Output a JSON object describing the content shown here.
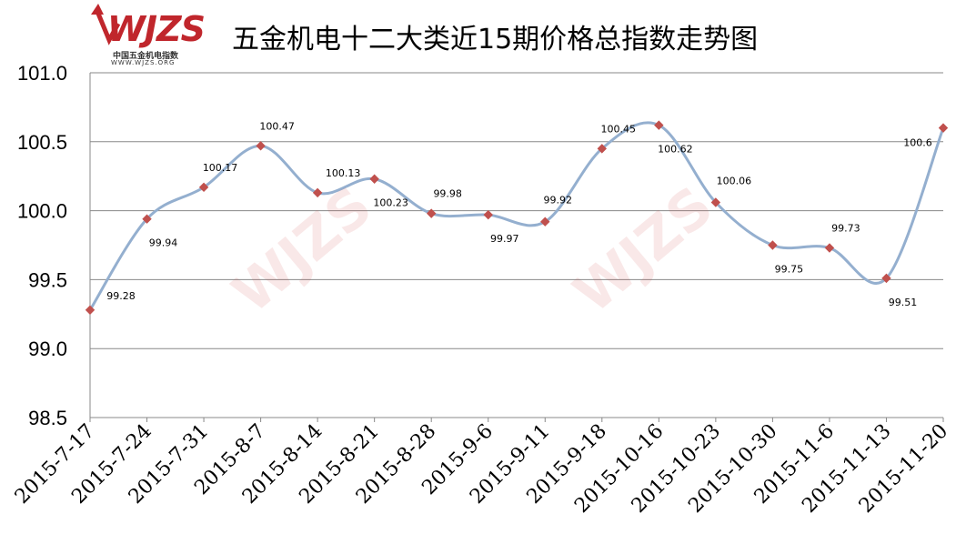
{
  "header": {
    "title": "五金机电十二大类近15期价格总指数走势图",
    "logo_text": "WJZS",
    "logo_cn": "中国五金机电指数",
    "logo_url": "WWW.WJZS.ORG"
  },
  "colors": {
    "line": "#94afcf",
    "marker": "#c0504d",
    "grid": "#888888",
    "brand": "#c0262c"
  },
  "chart_data": {
    "type": "line",
    "title": "五金机电十二大类近15期价格总指数走势图",
    "categories": [
      "2015-7-17",
      "2015-7-24",
      "2015-7-31",
      "2015-8-7",
      "2015-8-14",
      "2015-8-21",
      "2015-8-28",
      "2015-9-6",
      "2015-9-11",
      "2015-9-18",
      "2015-10-16",
      "2015-10-23",
      "2015-10-30",
      "2015-11-6",
      "2015-11-13",
      "2015-11-20"
    ],
    "series": [
      {
        "values": [
          99.28,
          99.94,
          100.17,
          100.47,
          100.13,
          100.23,
          99.98,
          99.97,
          99.92,
          100.45,
          100.62,
          100.06,
          99.75,
          99.73,
          99.51,
          100.6
        ]
      }
    ],
    "data_labels": [
      "99.28",
      "99.94",
      "100.17",
      "100.47",
      "100.13",
      "100.23",
      "99.98",
      "99.97",
      "99.92",
      "100.45",
      "100.62",
      "100.06",
      "99.75",
      "99.73",
      "99.51",
      "100.6"
    ],
    "ylim": [
      98.5,
      101.0
    ],
    "yticks": [
      "98.5",
      "99.0",
      "99.5",
      "100.0",
      "100.5",
      "101.0"
    ],
    "grid": true,
    "legend": "none",
    "smooth": true
  }
}
